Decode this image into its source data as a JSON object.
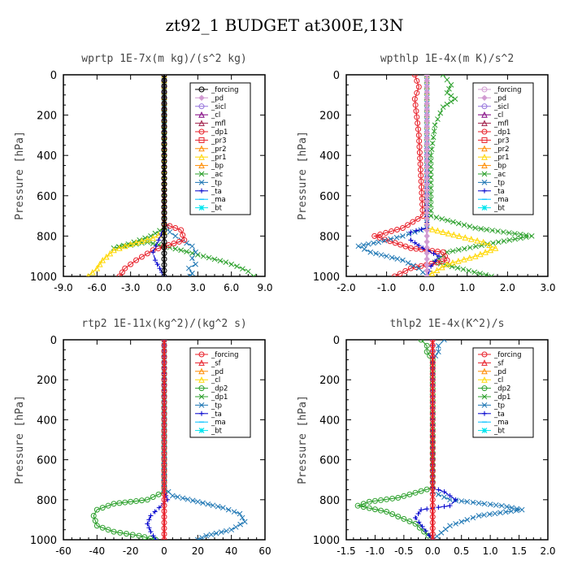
{
  "page_title": "zt92_1  BUDGET at300E,13N",
  "chart_data": [
    {
      "type": "line",
      "title": "wprtp  1E-7x(m kg)/(s^2 kg)",
      "ylabel": "Pressure [hPa]",
      "xlim": [
        -9,
        9
      ],
      "ylim": [
        1000,
        0
      ],
      "xticks": [
        -9,
        -6,
        -3,
        0,
        3,
        6,
        9
      ],
      "xtick_labels": [
        "-9.0",
        "-6.0",
        "-3.0",
        "0.0",
        "3.0",
        "6.0",
        "9.0"
      ],
      "yticks": [
        0,
        200,
        400,
        600,
        800,
        1000
      ],
      "ytick_labels": [
        "0",
        "200",
        "400",
        "600",
        "800",
        "1000"
      ],
      "legend_position": "top-right",
      "legend": [
        {
          "name": "_forcing",
          "color": "#000000",
          "marker": "circle"
        },
        {
          "name": "_pd",
          "color": "#d29bd2",
          "marker": "diamond"
        },
        {
          "name": "_sicl",
          "color": "#9370db",
          "marker": "circle"
        },
        {
          "name": "_cl",
          "color": "#800080",
          "marker": "triangle"
        },
        {
          "name": "_mfl",
          "color": "#a0204a",
          "marker": "triangle"
        },
        {
          "name": "_dp1",
          "color": "#e8202a",
          "marker": "circle"
        },
        {
          "name": "_pr3",
          "color": "#e8202a",
          "marker": "square"
        },
        {
          "name": "_pr2",
          "color": "#ff8c00",
          "marker": "triangle"
        },
        {
          "name": "_pr1",
          "color": "#ffd700",
          "marker": "triangle"
        },
        {
          "name": "_bp",
          "color": "#ff8c00",
          "marker": "triangle"
        },
        {
          "name": "_ac",
          "color": "#2ca02c",
          "marker": "x"
        },
        {
          "name": "_tp",
          "color": "#1f77b4",
          "marker": "x"
        },
        {
          "name": "_ta",
          "color": "#0000cd",
          "marker": "plus"
        },
        {
          "name": "_ma",
          "color": "#00bfff",
          "marker": "dash"
        },
        {
          "name": "_bt",
          "color": "#00e5ee",
          "marker": "star"
        }
      ],
      "series": [
        {
          "name": "_ac",
          "color": "#2ca02c",
          "marker": "x",
          "dash": "4,2",
          "x": [
            0,
            0,
            0,
            -1.2,
            -3.2,
            -4.5,
            -1.5,
            1.5,
            3.5,
            5.5,
            6.5,
            7.5,
            8
          ],
          "y": [
            0,
            700,
            760,
            800,
            840,
            860,
            830,
            870,
            900,
            930,
            950,
            975,
            1000
          ]
        },
        {
          "name": "_tp",
          "color": "#1f77b4",
          "marker": "x",
          "dash": "6,2,1,2",
          "x": [
            0,
            0,
            0.5,
            1.5,
            2.5,
            2.8,
            2.5,
            2.8,
            2.2,
            2.5,
            2.3
          ],
          "y": [
            0,
            720,
            780,
            820,
            850,
            880,
            910,
            940,
            960,
            985,
            1000
          ]
        },
        {
          "name": "_pr1",
          "color": "#ffd700",
          "marker": "triangle",
          "dash": "",
          "x": [
            0,
            0,
            -1,
            -3,
            -4.5,
            -5.5,
            -6,
            -6.8
          ],
          "y": [
            0,
            780,
            810,
            840,
            870,
            920,
            960,
            1000
          ]
        },
        {
          "name": "_dp1",
          "color": "#e8202a",
          "marker": "circle",
          "dash": "",
          "x": [
            0,
            0,
            1.5,
            1.8,
            -1,
            -2.5,
            -3.5,
            -4
          ],
          "y": [
            0,
            740,
            770,
            820,
            870,
            920,
            960,
            1000
          ]
        },
        {
          "name": "_ta",
          "color": "#0000cd",
          "marker": "plus",
          "dash": "6,3",
          "x": [
            0,
            0,
            -0.5,
            -1,
            -0.8,
            -0.4,
            0
          ],
          "y": [
            0,
            760,
            820,
            880,
            920,
            960,
            1000
          ]
        },
        {
          "name": "_forcing",
          "color": "#000000",
          "marker": "circle",
          "dash": "",
          "x": [
            0,
            0
          ],
          "y": [
            0,
            1000
          ]
        }
      ]
    },
    {
      "type": "line",
      "title": "wpthlp  1E-4x(m K)/s^2",
      "ylabel": "Pressure [hPa]",
      "xlim": [
        -2,
        3
      ],
      "ylim": [
        1000,
        0
      ],
      "xticks": [
        -2,
        -1,
        0,
        1,
        2,
        3
      ],
      "xtick_labels": [
        "-2.0",
        "-1.0",
        "0.0",
        "1.0",
        "2.0",
        "3.0"
      ],
      "yticks": [
        0,
        200,
        400,
        600,
        800,
        1000
      ],
      "ytick_labels": [
        "0",
        "200",
        "400",
        "600",
        "800",
        "1000"
      ],
      "legend_position": "top-right",
      "legend": [
        {
          "name": "_forcing",
          "color": "#d29bd2",
          "marker": "circle"
        },
        {
          "name": "_pd",
          "color": "#d29bd2",
          "marker": "diamond"
        },
        {
          "name": "_sicl",
          "color": "#9370db",
          "marker": "circle"
        },
        {
          "name": "_cl",
          "color": "#800080",
          "marker": "triangle"
        },
        {
          "name": "_mfl",
          "color": "#a0204a",
          "marker": "triangle"
        },
        {
          "name": "_dp1",
          "color": "#e8202a",
          "marker": "circle"
        },
        {
          "name": "_pr3",
          "color": "#e8202a",
          "marker": "square"
        },
        {
          "name": "_pr2",
          "color": "#ff8c00",
          "marker": "triangle"
        },
        {
          "name": "_pr1",
          "color": "#ffd700",
          "marker": "triangle"
        },
        {
          "name": "_bp",
          "color": "#ff8c00",
          "marker": "triangle"
        },
        {
          "name": "_ac",
          "color": "#2ca02c",
          "marker": "x"
        },
        {
          "name": "_tp",
          "color": "#1f77b4",
          "marker": "x"
        },
        {
          "name": "_ta",
          "color": "#0000cd",
          "marker": "plus"
        },
        {
          "name": "_ma",
          "color": "#00bfff",
          "marker": "dash"
        },
        {
          "name": "_bt",
          "color": "#00e5ee",
          "marker": "star"
        }
      ],
      "series": [
        {
          "name": "_ac",
          "color": "#2ca02c",
          "marker": "x",
          "dash": "4,2",
          "x": [
            0.4,
            0.6,
            0.5,
            0.7,
            0.4,
            0.2,
            0.1,
            0.1,
            1.2,
            2.6,
            1.5,
            0.5,
            0.2,
            1.6
          ],
          "y": [
            0,
            50,
            90,
            120,
            160,
            250,
            400,
            700,
            760,
            800,
            840,
            880,
            930,
            1000
          ]
        },
        {
          "name": "_dp1",
          "color": "#e8202a",
          "marker": "circle",
          "dash": "",
          "x": [
            -0.3,
            -0.2,
            -0.3,
            -0.2,
            -0.1,
            -0.6,
            -1.3,
            -0.4,
            0.4,
            0.5,
            -0.4,
            -0.8
          ],
          "y": [
            0,
            60,
            120,
            300,
            700,
            760,
            800,
            860,
            880,
            920,
            960,
            1000
          ]
        },
        {
          "name": "_pr1",
          "color": "#ffd700",
          "marker": "triangle",
          "dash": "",
          "x": [
            0,
            0,
            0.8,
            1.4,
            1.7,
            1.2,
            0.5,
            0
          ],
          "y": [
            0,
            760,
            800,
            830,
            860,
            900,
            940,
            1000
          ]
        },
        {
          "name": "_tp",
          "color": "#1f77b4",
          "marker": "x",
          "dash": "6,2,1,2",
          "x": [
            0,
            0,
            -0.6,
            -1.2,
            -1.7,
            -1.4,
            -0.6,
            -0.2,
            0
          ],
          "y": [
            0,
            760,
            800,
            830,
            850,
            880,
            920,
            960,
            1000
          ]
        },
        {
          "name": "_ta",
          "color": "#0000cd",
          "marker": "plus",
          "dash": "6,3",
          "x": [
            0,
            0,
            -0.4,
            -0.4,
            -0.1,
            0.3,
            0.1,
            0
          ],
          "y": [
            0,
            760,
            780,
            820,
            860,
            900,
            950,
            1000
          ]
        },
        {
          "name": "_pd",
          "color": "#d29bd2",
          "marker": "diamond",
          "dash": "",
          "x": [
            0,
            0
          ],
          "y": [
            0,
            1000
          ]
        }
      ]
    },
    {
      "type": "line",
      "title": "rtp2  1E-11x(kg^2)/(kg^2 s)",
      "ylabel": "Pressure [hPa]",
      "xlim": [
        -60,
        60
      ],
      "ylim": [
        1000,
        0
      ],
      "xticks": [
        -60,
        -40,
        -20,
        0,
        20,
        40,
        60
      ],
      "xtick_labels": [
        "-60",
        "-40",
        "-20",
        "0",
        "20",
        "40",
        "60"
      ],
      "yticks": [
        0,
        200,
        400,
        600,
        800,
        1000
      ],
      "ytick_labels": [
        "0",
        "200",
        "400",
        "600",
        "800",
        "1000"
      ],
      "legend_position": "top-right",
      "legend": [
        {
          "name": "_forcing",
          "color": "#e8202a",
          "marker": "circle"
        },
        {
          "name": "_sf",
          "color": "#e8202a",
          "marker": "triangle"
        },
        {
          "name": "_pd",
          "color": "#ff8c00",
          "marker": "triangle"
        },
        {
          "name": "_cl",
          "color": "#ffd700",
          "marker": "triangle"
        },
        {
          "name": "_dp2",
          "color": "#2ca02c",
          "marker": "circle"
        },
        {
          "name": "_dp1",
          "color": "#2ca02c",
          "marker": "x"
        },
        {
          "name": "_tp",
          "color": "#1f77b4",
          "marker": "x"
        },
        {
          "name": "_ta",
          "color": "#0000cd",
          "marker": "plus"
        },
        {
          "name": "_ma",
          "color": "#00bfff",
          "marker": "dash"
        },
        {
          "name": "_bt",
          "color": "#00e5ee",
          "marker": "star"
        }
      ],
      "series": [
        {
          "name": "_dp2",
          "color": "#2ca02c",
          "marker": "circle",
          "dash": "",
          "x": [
            0,
            0,
            -10,
            -30,
            -40,
            -42,
            -40,
            -30,
            -15,
            -5
          ],
          "y": [
            0,
            760,
            800,
            820,
            850,
            880,
            930,
            960,
            980,
            1000
          ]
        },
        {
          "name": "_tp",
          "color": "#1f77b4",
          "marker": "x",
          "dash": "6,2,1,2",
          "x": [
            0,
            0,
            5,
            20,
            35,
            45,
            48,
            40,
            25,
            20
          ],
          "y": [
            0,
            740,
            780,
            810,
            840,
            870,
            910,
            950,
            980,
            1000
          ]
        },
        {
          "name": "_ta",
          "color": "#0000cd",
          "marker": "plus",
          "dash": "6,3",
          "x": [
            0,
            0,
            2,
            -3,
            -8,
            -10,
            -8,
            -5
          ],
          "y": [
            0,
            760,
            800,
            840,
            880,
            920,
            960,
            1000
          ]
        },
        {
          "name": "_forcing",
          "color": "#e8202a",
          "marker": "circle",
          "dash": "",
          "x": [
            0,
            0
          ],
          "y": [
            0,
            1000
          ]
        }
      ]
    },
    {
      "type": "line",
      "title": "thlp2  1E-4x(K^2)/s",
      "ylabel": "Pressure [hPa]",
      "xlim": [
        -1.5,
        2.0
      ],
      "ylim": [
        1000,
        0
      ],
      "xticks": [
        -1.5,
        -1.0,
        -0.5,
        0.0,
        0.5,
        1.0,
        1.5,
        2.0
      ],
      "xtick_labels": [
        "-1.5",
        "-1.0",
        "-0.5",
        "0.0",
        "0.5",
        "1.0",
        "1.5",
        "2.0"
      ],
      "yticks": [
        0,
        200,
        400,
        600,
        800,
        1000
      ],
      "ytick_labels": [
        "0",
        "200",
        "400",
        "600",
        "800",
        "1000"
      ],
      "legend_position": "top-right",
      "legend": [
        {
          "name": "_forcing",
          "color": "#e8202a",
          "marker": "circle"
        },
        {
          "name": "_sf",
          "color": "#e8202a",
          "marker": "triangle"
        },
        {
          "name": "_pd",
          "color": "#ff8c00",
          "marker": "triangle"
        },
        {
          "name": "_cl",
          "color": "#ffd700",
          "marker": "triangle"
        },
        {
          "name": "_dp2",
          "color": "#2ca02c",
          "marker": "circle"
        },
        {
          "name": "_dp1",
          "color": "#2ca02c",
          "marker": "x"
        },
        {
          "name": "_tp",
          "color": "#1f77b4",
          "marker": "x"
        },
        {
          "name": "_ta",
          "color": "#0000cd",
          "marker": "plus"
        },
        {
          "name": "_ma",
          "color": "#00bfff",
          "marker": "dash"
        },
        {
          "name": "_bt",
          "color": "#00e5ee",
          "marker": "star"
        }
      ],
      "series": [
        {
          "name": "_dp2",
          "color": "#2ca02c",
          "marker": "circle",
          "dash": "",
          "x": [
            -0.2,
            -0.1,
            -0.1,
            0,
            0,
            -0.6,
            -1.1,
            -1.3,
            -0.8,
            -0.3,
            0
          ],
          "y": [
            0,
            30,
            60,
            100,
            740,
            790,
            810,
            830,
            860,
            920,
            1000
          ]
        },
        {
          "name": "_tp",
          "color": "#1f77b4",
          "marker": "x",
          "dash": "6,2,1,2",
          "x": [
            0.2,
            0.1,
            0.1,
            0,
            0,
            0.3,
            1.2,
            1.55,
            0.8,
            0.3,
            0
          ],
          "y": [
            0,
            30,
            60,
            100,
            760,
            800,
            830,
            850,
            880,
            930,
            1000
          ]
        },
        {
          "name": "_ta",
          "color": "#0000cd",
          "marker": "plus",
          "dash": "6,3",
          "x": [
            0,
            0,
            0.2,
            0.4,
            0.3,
            -0.2,
            -0.3,
            0
          ],
          "y": [
            0,
            740,
            760,
            800,
            830,
            850,
            890,
            1000
          ]
        },
        {
          "name": "_forcing",
          "color": "#e8202a",
          "marker": "circle",
          "dash": "",
          "x": [
            0,
            0
          ],
          "y": [
            0,
            1000
          ]
        }
      ]
    }
  ]
}
